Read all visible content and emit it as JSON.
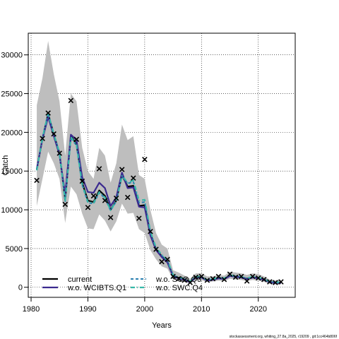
{
  "chart_data": {
    "type": "line",
    "xlabel": "Years",
    "ylabel": "Catch",
    "xlim": [
      1979.5,
      2026.5
    ],
    "ylim": [
      -1300,
      32800
    ],
    "x_ticks": [
      1980,
      1990,
      2000,
      2010,
      2020
    ],
    "y_ticks": [
      0,
      5000,
      10000,
      15000,
      20000,
      25000,
      30000
    ],
    "grid": true,
    "legend_position": "bottom-left",
    "colors": {
      "band": "#bebebe",
      "current": "#000000",
      "wo_wcibts_q1": "#3b2a8f",
      "wo_sco_q3": "#2a7fb0",
      "wo_swc_q4": "#35b8a8",
      "observed": "#000000"
    },
    "legend": [
      {
        "label": "current",
        "series": "current",
        "style": "solid"
      },
      {
        "label": "w.o. WCIBTS.Q1",
        "series": "wo_wcibts_q1",
        "style": "solid"
      },
      {
        "label": "w.o. SCO.Q3",
        "series": "wo_sco_q3",
        "style": "dashed"
      },
      {
        "label": "w.o. SWC.Q4",
        "series": "wo_swc_q4",
        "style": "dashdot"
      }
    ],
    "years": [
      1981,
      1982,
      1983,
      1984,
      1985,
      1986,
      1987,
      1988,
      1989,
      1990,
      1991,
      1992,
      1993,
      1994,
      1995,
      1996,
      1997,
      1998,
      1999,
      2000,
      2001,
      2002,
      2003,
      2004,
      2005,
      2006,
      2007,
      2008,
      2009,
      2010,
      2011,
      2012,
      2013,
      2014,
      2015,
      2016,
      2017,
      2018,
      2019,
      2020,
      2021,
      2022,
      2023,
      2024
    ],
    "band_lower": [
      10500,
      14000,
      17500,
      16000,
      14000,
      8300,
      13000,
      12000,
      9500,
      7600,
      7500,
      9400,
      8600,
      7200,
      8500,
      10800,
      9500,
      9600,
      7500,
      7000,
      4800,
      3600,
      2700,
      2400,
      1000,
      850,
      700,
      480,
      900,
      900,
      700,
      750,
      850,
      800,
      1100,
      1000,
      950,
      800,
      950,
      850,
      700,
      450,
      350,
      350
    ],
    "band_upper": [
      23500,
      27000,
      31800,
      27500,
      24000,
      17000,
      25000,
      24000,
      18000,
      15000,
      14000,
      18000,
      17000,
      13500,
      16000,
      21000,
      19000,
      19500,
      14500,
      14000,
      10000,
      7000,
      5500,
      5000,
      2200,
      1900,
      1500,
      1100,
      1800,
      1800,
      1400,
      1400,
      1600,
      1500,
      2000,
      1900,
      1800,
      1600,
      1800,
      1700,
      1400,
      1000,
      900,
      950
    ],
    "series": [
      {
        "name": "current",
        "key": "current",
        "values": [
          15200,
          19200,
          22400,
          19700,
          17300,
          11300,
          19500,
          18500,
          13500,
          11200,
          11000,
          12500,
          11800,
          10000,
          11200,
          14500,
          13000,
          13100,
          10500,
          10600,
          6900,
          4900,
          4000,
          3300,
          1500,
          1200,
          1000,
          700,
          1300,
          1300,
          900,
          1000,
          1200,
          1100,
          1500,
          1400,
          1300,
          1100,
          1300,
          1200,
          1000,
          700,
          600,
          600
        ]
      },
      {
        "name": "w.o. WCIBTS.Q1",
        "key": "wo_wcibts_q1",
        "values": [
          15300,
          19100,
          22000,
          19500,
          17100,
          12000,
          19700,
          19000,
          14200,
          12300,
          12200,
          13500,
          12800,
          10500,
          11600,
          14800,
          12800,
          12900,
          10400,
          10300,
          6700,
          4800,
          3900,
          3200,
          1400,
          1150,
          950,
          650,
          1250,
          1250,
          850,
          950,
          1150,
          1050,
          1450,
          1350,
          1250,
          1050,
          1250,
          1150,
          950,
          650,
          550,
          560
        ]
      },
      {
        "name": "w.o. SCO.Q3",
        "key": "wo_sco_q3",
        "values": [
          15150,
          19300,
          22500,
          19800,
          17400,
          11100,
          19300,
          18300,
          13200,
          10900,
          10800,
          12200,
          11500,
          9900,
          11100,
          14300,
          13400,
          13600,
          10900,
          11000,
          7100,
          5000,
          4100,
          3400,
          1550,
          1250,
          1050,
          720,
          1350,
          1330,
          920,
          1030,
          1230,
          1130,
          1530,
          1430,
          1330,
          1130,
          1330,
          1230,
          1030,
          720,
          620,
          620
        ]
      },
      {
        "name": "w.o. SWC.Q4",
        "key": "wo_swc_q4",
        "values": [
          15100,
          19250,
          22450,
          19750,
          17350,
          11200,
          19400,
          18400,
          13300,
          11000,
          10900,
          12300,
          11600,
          9950,
          11150,
          14400,
          13500,
          13800,
          11200,
          11300,
          7200,
          5100,
          4200,
          3500,
          1600,
          1300,
          1100,
          760,
          1380,
          1370,
          950,
          1060,
          1260,
          1160,
          1560,
          1460,
          1360,
          1160,
          1360,
          1260,
          1060,
          750,
          640,
          650
        ]
      }
    ],
    "observed": {
      "x": [
        1981,
        1982,
        1983,
        1984,
        1985,
        1986,
        1987,
        1988,
        1989,
        1990,
        1991,
        1992,
        1993,
        1994,
        1995,
        1996,
        1997,
        1998,
        1999,
        2000,
        2001,
        2002,
        2003,
        2004,
        2005,
        2006,
        2007,
        2008,
        2009,
        2010,
        2011,
        2012,
        2013,
        2014,
        2015,
        2016,
        2017,
        2018,
        2019,
        2020,
        2021,
        2022,
        2023,
        2024
      ],
      "y": [
        13800,
        19200,
        22500,
        19800,
        17300,
        10700,
        24100,
        19100,
        13700,
        10300,
        11800,
        15300,
        11200,
        9000,
        11500,
        15200,
        11600,
        14100,
        8900,
        16500,
        7200,
        4900,
        3300,
        3600,
        1400,
        1100,
        900,
        600,
        1300,
        1400,
        900,
        1100,
        1400,
        1000,
        1700,
        1300,
        1400,
        800,
        1400,
        1200,
        1000,
        700,
        600,
        700
      ]
    },
    "footer": "stockassessment.org, whiting_27.8a_2025, r19209 , git:1cc464b806f"
  }
}
